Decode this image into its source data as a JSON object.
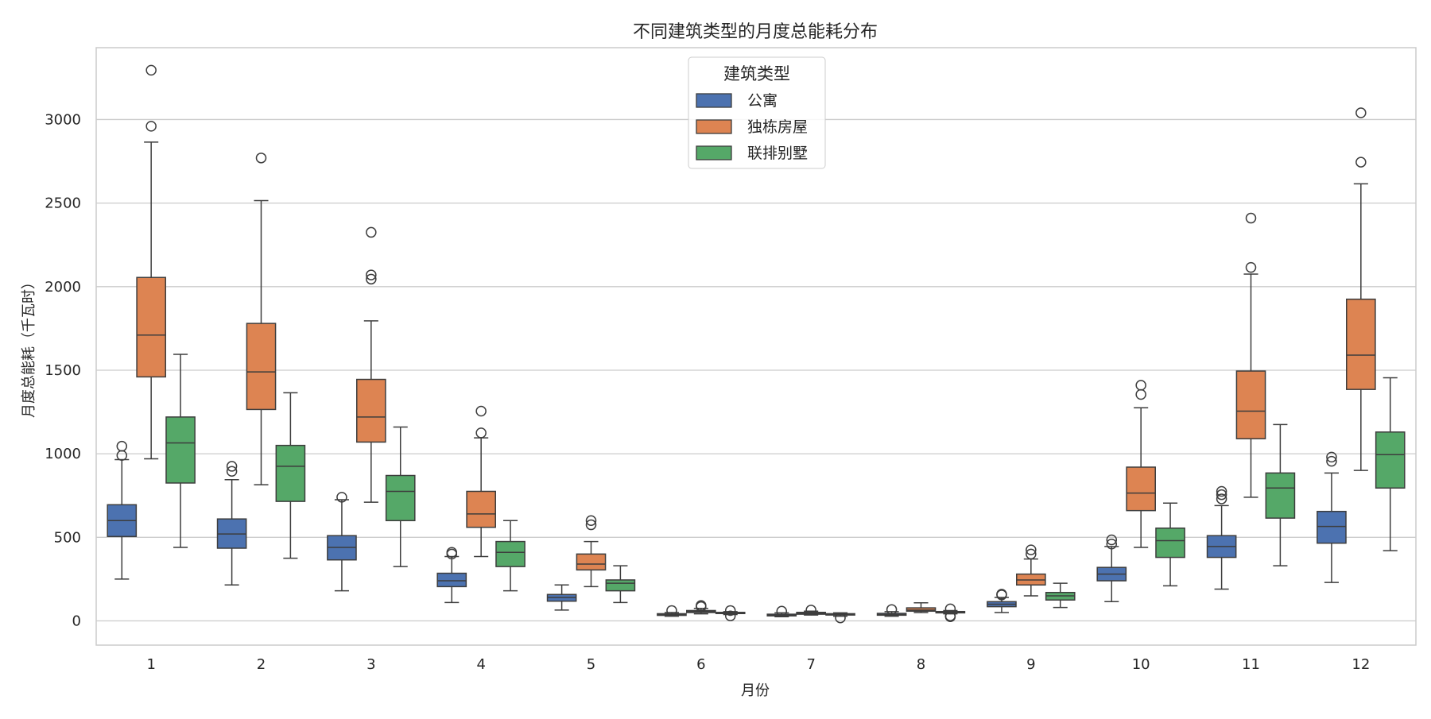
{
  "chart_data": {
    "type": "box",
    "title": "不同建筑类型的月度总能耗分布",
    "xlabel": "月份",
    "ylabel": "月度总能耗（千瓦时）",
    "categories": [
      "1",
      "2",
      "3",
      "4",
      "5",
      "6",
      "7",
      "8",
      "9",
      "10",
      "11",
      "12"
    ],
    "ylim": [
      -145,
      3430
    ],
    "yticks": [
      0,
      500,
      1000,
      1500,
      2000,
      2500,
      3000
    ],
    "grid": true,
    "legend": {
      "title": "建筑类型",
      "position": "top-center"
    },
    "series": [
      {
        "name": "公寓",
        "color": "#4c72b0",
        "boxes": [
          {
            "whislo": 250,
            "q1": 505,
            "med": 600,
            "q3": 695,
            "whishi": 965,
            "fliers": [
              990,
              1045
            ]
          },
          {
            "whislo": 215,
            "q1": 435,
            "med": 520,
            "q3": 610,
            "whishi": 845,
            "fliers": [
              895,
              925
            ]
          },
          {
            "whislo": 180,
            "q1": 365,
            "med": 440,
            "q3": 510,
            "whishi": 725,
            "fliers": [
              740
            ]
          },
          {
            "whislo": 110,
            "q1": 205,
            "med": 240,
            "q3": 285,
            "whishi": 385,
            "fliers": [
              400,
              410
            ]
          },
          {
            "whislo": 65,
            "q1": 118,
            "med": 140,
            "q3": 158,
            "whishi": 215,
            "fliers": []
          },
          {
            "whislo": 28,
            "q1": 33,
            "med": 37,
            "q3": 43,
            "whishi": 50,
            "fliers": [
              62
            ]
          },
          {
            "whislo": 25,
            "q1": 30,
            "med": 34,
            "q3": 40,
            "whishi": 48,
            "fliers": [
              58
            ]
          },
          {
            "whislo": 28,
            "q1": 34,
            "med": 38,
            "q3": 45,
            "whishi": 55,
            "fliers": [
              68
            ]
          },
          {
            "whislo": 50,
            "q1": 85,
            "med": 100,
            "q3": 115,
            "whishi": 140,
            "fliers": [
              155,
              160
            ]
          },
          {
            "whislo": 115,
            "q1": 240,
            "med": 280,
            "q3": 320,
            "whishi": 445,
            "fliers": [
              460,
              485
            ]
          },
          {
            "whislo": 190,
            "q1": 380,
            "med": 445,
            "q3": 510,
            "whishi": 690,
            "fliers": [
              730,
              755,
              775
            ]
          },
          {
            "whislo": 230,
            "q1": 465,
            "med": 565,
            "q3": 655,
            "whishi": 885,
            "fliers": [
              955,
              980
            ]
          }
        ]
      },
      {
        "name": "独栋房屋",
        "color": "#dd8452",
        "boxes": [
          {
            "whislo": 970,
            "q1": 1460,
            "med": 1710,
            "q3": 2055,
            "whishi": 2865,
            "fliers": [
              2960,
              3295
            ]
          },
          {
            "whislo": 815,
            "q1": 1265,
            "med": 1490,
            "q3": 1780,
            "whishi": 2515,
            "fliers": [
              2770
            ]
          },
          {
            "whislo": 710,
            "q1": 1070,
            "med": 1220,
            "q3": 1445,
            "whishi": 1795,
            "fliers": [
              2045,
              2070,
              2325
            ]
          },
          {
            "whislo": 385,
            "q1": 560,
            "med": 640,
            "q3": 775,
            "whishi": 1095,
            "fliers": [
              1125,
              1255
            ]
          },
          {
            "whislo": 205,
            "q1": 305,
            "med": 340,
            "q3": 400,
            "whishi": 475,
            "fliers": [
              575,
              600
            ]
          },
          {
            "whislo": 42,
            "q1": 50,
            "med": 56,
            "q3": 62,
            "whishi": 75,
            "fliers": [
              85,
              92
            ]
          },
          {
            "whislo": 35,
            "q1": 40,
            "med": 45,
            "q3": 51,
            "whishi": 58,
            "fliers": [
              65
            ]
          },
          {
            "whislo": 50,
            "q1": 58,
            "med": 65,
            "q3": 78,
            "whishi": 108,
            "fliers": []
          },
          {
            "whislo": 150,
            "q1": 215,
            "med": 245,
            "q3": 280,
            "whishi": 370,
            "fliers": [
              400,
              425
            ]
          },
          {
            "whislo": 440,
            "q1": 660,
            "med": 765,
            "q3": 920,
            "whishi": 1275,
            "fliers": [
              1355,
              1410
            ]
          },
          {
            "whislo": 740,
            "q1": 1090,
            "med": 1255,
            "q3": 1495,
            "whishi": 2075,
            "fliers": [
              2115,
              2410
            ]
          },
          {
            "whislo": 900,
            "q1": 1385,
            "med": 1590,
            "q3": 1925,
            "whishi": 2615,
            "fliers": [
              2745,
              3040
            ]
          }
        ]
      },
      {
        "name": "联排别墅",
        "color": "#55a868",
        "boxes": [
          {
            "whislo": 440,
            "q1": 825,
            "med": 1065,
            "q3": 1220,
            "whishi": 1595,
            "fliers": []
          },
          {
            "whislo": 375,
            "q1": 715,
            "med": 925,
            "q3": 1050,
            "whishi": 1365,
            "fliers": []
          },
          {
            "whislo": 325,
            "q1": 600,
            "med": 775,
            "q3": 870,
            "whishi": 1160,
            "fliers": []
          },
          {
            "whislo": 180,
            "q1": 325,
            "med": 410,
            "q3": 475,
            "whishi": 600,
            "fliers": []
          },
          {
            "whislo": 110,
            "q1": 180,
            "med": 225,
            "q3": 245,
            "whishi": 330,
            "fliers": []
          },
          {
            "whislo": 38,
            "q1": 44,
            "med": 47,
            "q3": 51,
            "whishi": 55,
            "fliers": [
              30,
              62
            ]
          },
          {
            "whislo": 28,
            "q1": 35,
            "med": 39,
            "q3": 43,
            "whishi": 48,
            "fliers": [
              18
            ]
          },
          {
            "whislo": 42,
            "q1": 48,
            "med": 52,
            "q3": 56,
            "whishi": 62,
            "fliers": [
              25,
              30,
              72
            ]
          },
          {
            "whislo": 80,
            "q1": 125,
            "med": 150,
            "q3": 170,
            "whishi": 225,
            "fliers": []
          },
          {
            "whislo": 210,
            "q1": 380,
            "med": 480,
            "q3": 555,
            "whishi": 705,
            "fliers": []
          },
          {
            "whislo": 330,
            "q1": 615,
            "med": 795,
            "q3": 885,
            "whishi": 1175,
            "fliers": []
          },
          {
            "whislo": 420,
            "q1": 795,
            "med": 995,
            "q3": 1130,
            "whishi": 1455,
            "fliers": []
          }
        ]
      }
    ]
  }
}
